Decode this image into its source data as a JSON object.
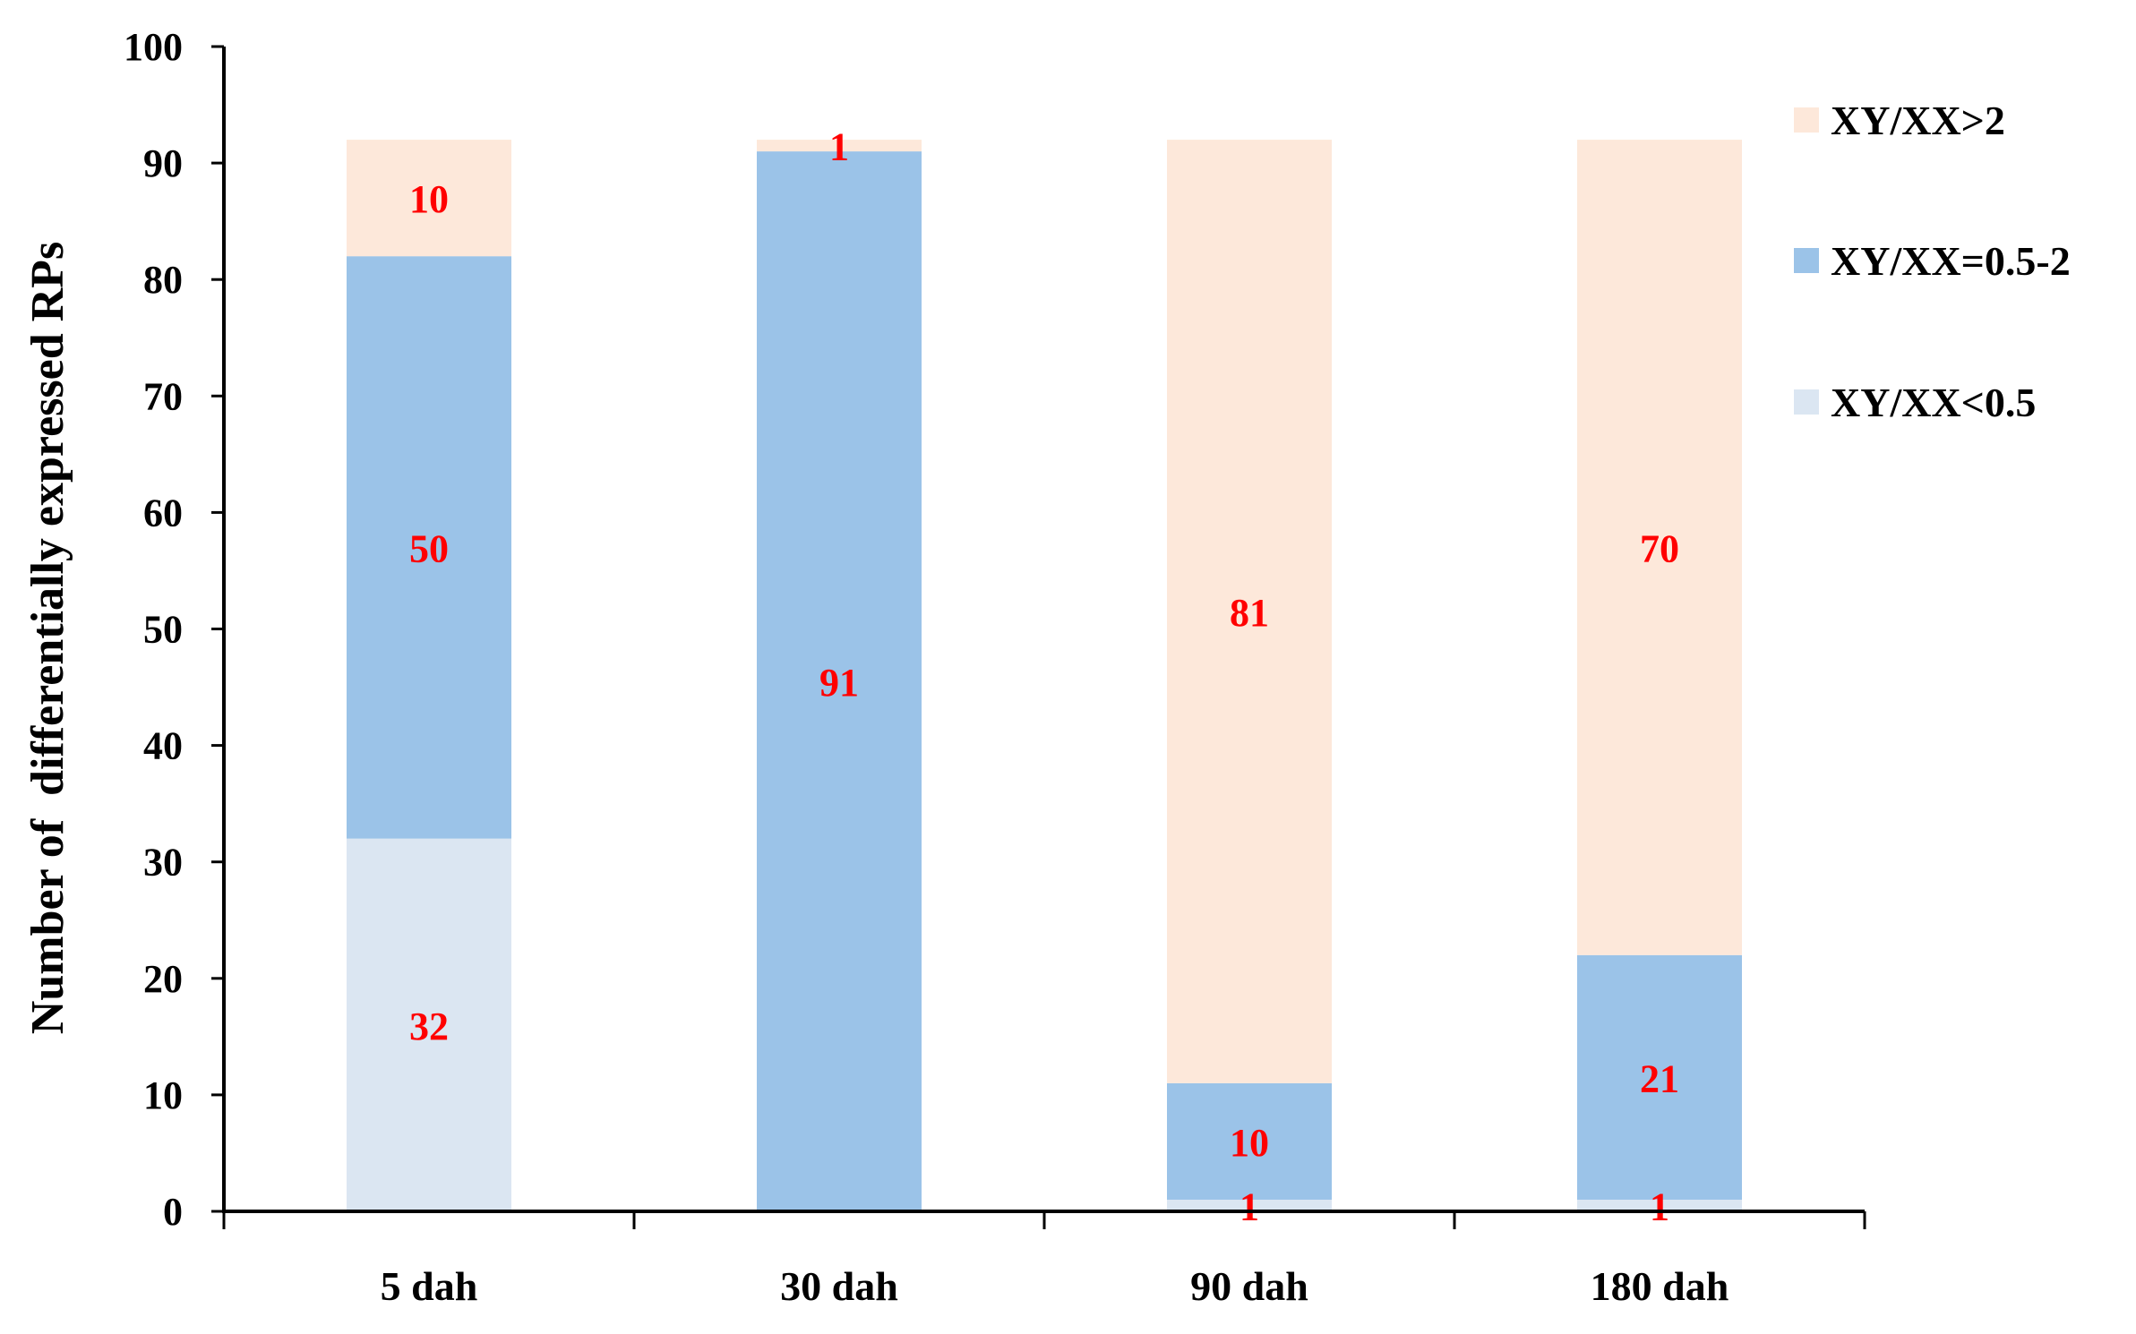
{
  "chart_data": {
    "type": "bar",
    "stacked": true,
    "title": "",
    "xlabel": "",
    "ylabel": "Number of  differentially expressed RPs",
    "ylim": [
      0,
      100
    ],
    "yticks": [
      "0",
      "10",
      "20",
      "30",
      "40",
      "50",
      "60",
      "70",
      "80",
      "90",
      "100"
    ],
    "categories": [
      "5 dah",
      "30 dah",
      "90 dah",
      "180 dah"
    ],
    "series": [
      {
        "name": "XY/XX<0.5",
        "values": [
          32,
          0,
          1,
          1
        ],
        "color": "#dbe6f2"
      },
      {
        "name": "XY/XX=0.5-2",
        "values": [
          50,
          91,
          10,
          21
        ],
        "color": "#9bc3e8"
      },
      {
        "name": "XY/XX>2",
        "values": [
          10,
          1,
          81,
          70
        ],
        "color": "#fde8da"
      }
    ],
    "data_labels": [
      {
        "category": "5 dah",
        "series": "XY/XX<0.5",
        "text": "32"
      },
      {
        "category": "5 dah",
        "series": "XY/XX=0.5-2",
        "text": "50"
      },
      {
        "category": "5 dah",
        "series": "XY/XX>2",
        "text": "10"
      },
      {
        "category": "30 dah",
        "series": "XY/XX=0.5-2",
        "text": "91"
      },
      {
        "category": "30 dah",
        "series": "XY/XX>2",
        "text": "1"
      },
      {
        "category": "90 dah",
        "series": "XY/XX<0.5",
        "text": "1"
      },
      {
        "category": "90 dah",
        "series": "XY/XX=0.5-2",
        "text": "10"
      },
      {
        "category": "90 dah",
        "series": "XY/XX>2",
        "text": "81"
      },
      {
        "category": "180 dah",
        "series": "XY/XX<0.5",
        "text": "1"
      },
      {
        "category": "180 dah",
        "series": "XY/XX=0.5-2",
        "text": "21"
      },
      {
        "category": "180 dah",
        "series": "XY/XX>2",
        "text": "70"
      }
    ],
    "label_color": "#ff0000",
    "legend": {
      "position": "top-right",
      "order": [
        "XY/XX>2",
        "XY/XX=0.5-2",
        "XY/XX<0.5"
      ]
    },
    "grid": false
  }
}
